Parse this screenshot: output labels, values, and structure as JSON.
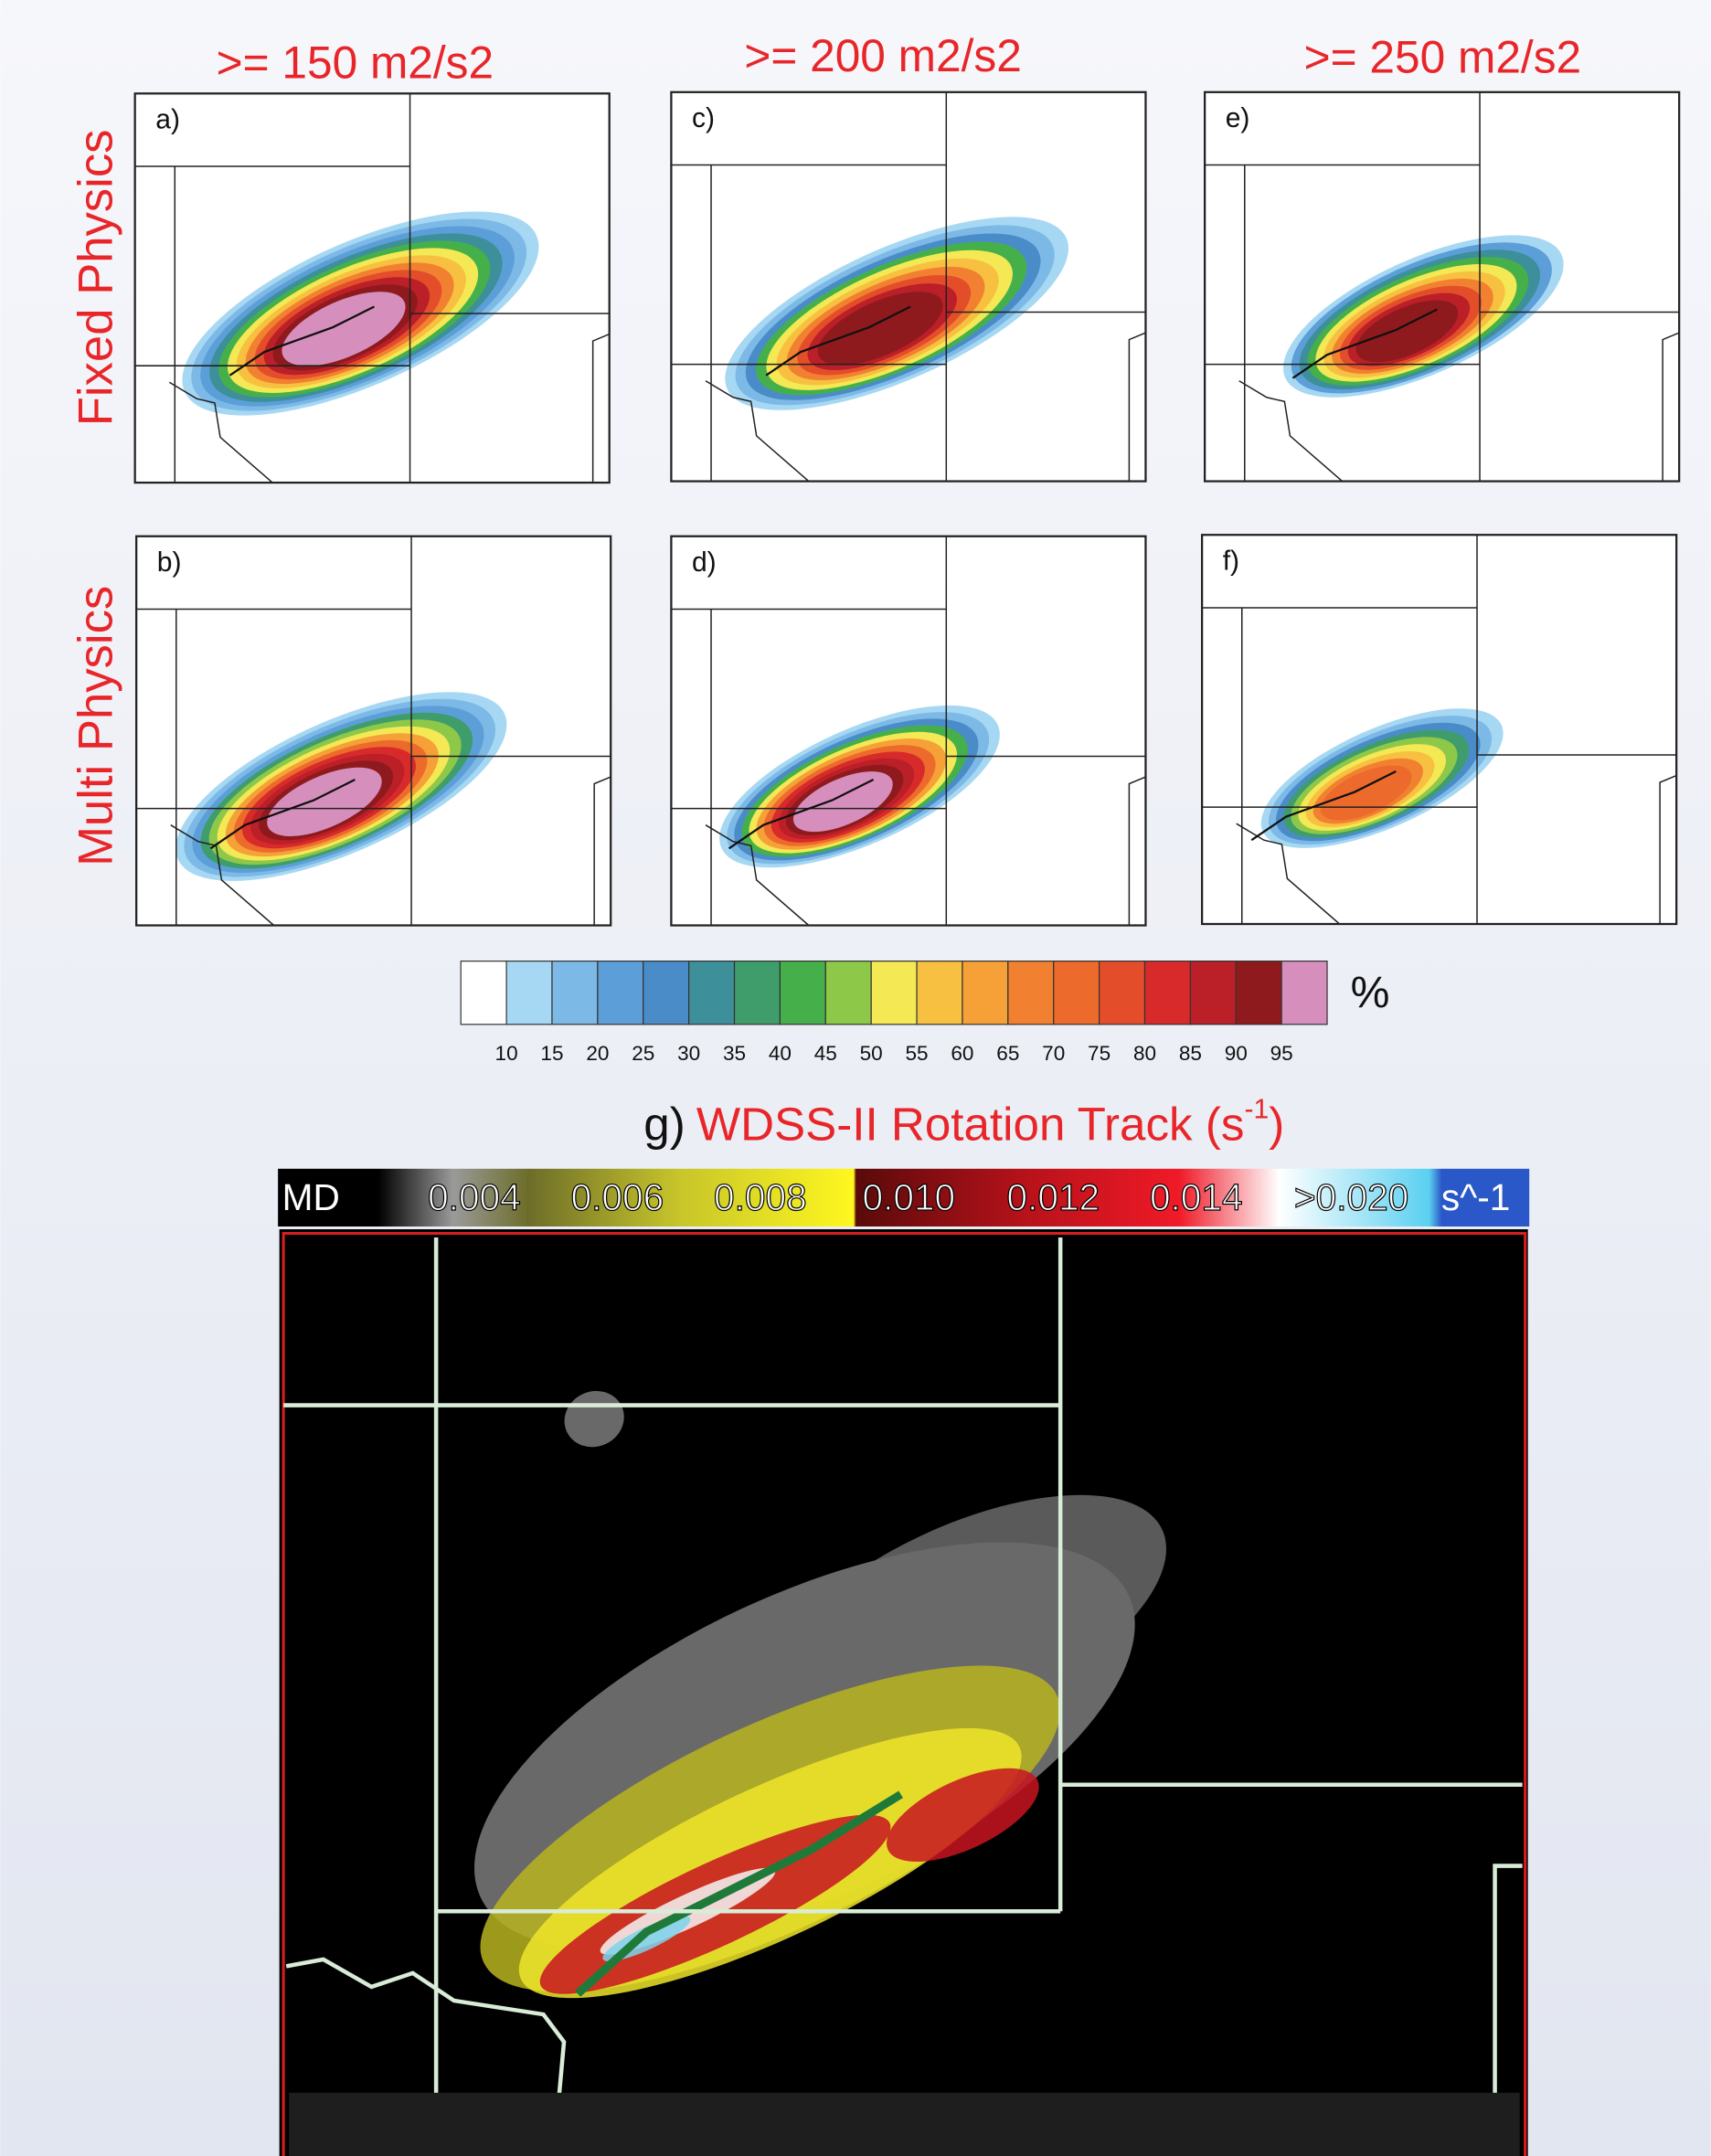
{
  "columns": [
    ">= 150 m2/s2",
    ">= 200 m2/s2",
    ">= 250 m2/s2"
  ],
  "rows": [
    "Fixed Physics",
    "Multi Physics"
  ],
  "panels": [
    "a)",
    "c)",
    "e)",
    "b)",
    "d)",
    "f)"
  ],
  "colorbar": {
    "colors": [
      "#ffffff",
      "#a6d8f4",
      "#7db9e6",
      "#5c9fd8",
      "#4a8cc8",
      "#3d8f9a",
      "#3f9d6c",
      "#45b04a",
      "#8ec849",
      "#f4e855",
      "#f8c040",
      "#f6a038",
      "#f18130",
      "#ec6a2c",
      "#e44d2a",
      "#d82a2a",
      "#bb1f27",
      "#8f1a1d",
      "#d68fbd"
    ],
    "ticks": [
      10,
      15,
      20,
      25,
      30,
      35,
      40,
      45,
      50,
      55,
      60,
      65,
      70,
      75,
      80,
      85,
      90,
      95
    ],
    "unit": "%"
  },
  "wdss": {
    "label": "g)",
    "title": "WDSS-II Rotation Track (s",
    "title_sup": "-1",
    "title_end": ")",
    "scale_labels": [
      "MD",
      "0.004",
      "0.006",
      "0.008",
      "0.010",
      "0.012",
      "0.014",
      ">0.020",
      "s^-1"
    ]
  }
}
